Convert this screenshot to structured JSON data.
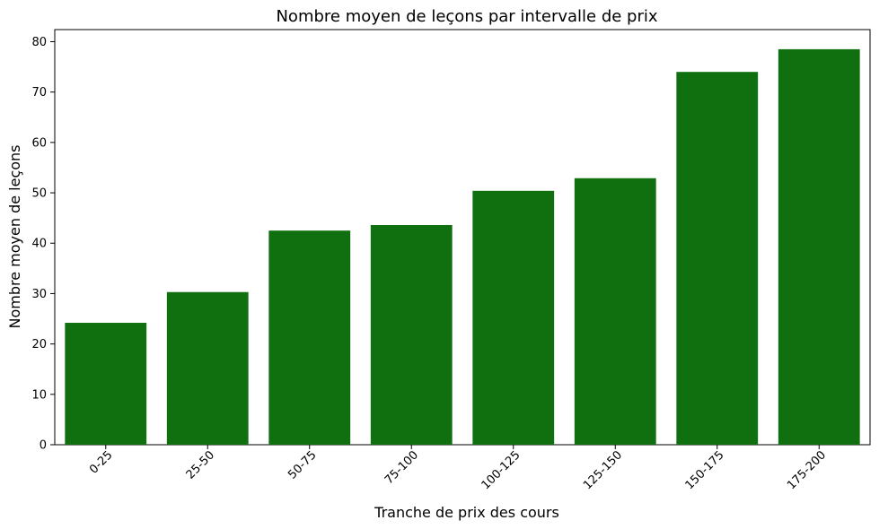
{
  "chart_data": {
    "type": "bar",
    "title": "Nombre moyen de leçons par intervalle de prix",
    "xlabel": "Tranche de prix des cours",
    "ylabel": "Nombre moyen de leçons",
    "categories": [
      "0-25",
      "25-50",
      "50-75",
      "75-100",
      "100-125",
      "125-150",
      "150-175",
      "175-200"
    ],
    "values": [
      24.2,
      30.3,
      42.5,
      43.6,
      50.4,
      52.9,
      74.0,
      78.5
    ],
    "ylim": [
      0,
      82.4
    ],
    "yticks": [
      0,
      10,
      20,
      30,
      40,
      50,
      60,
      70,
      80
    ],
    "bar_color": "#107010",
    "grid": false,
    "legend": "none"
  }
}
